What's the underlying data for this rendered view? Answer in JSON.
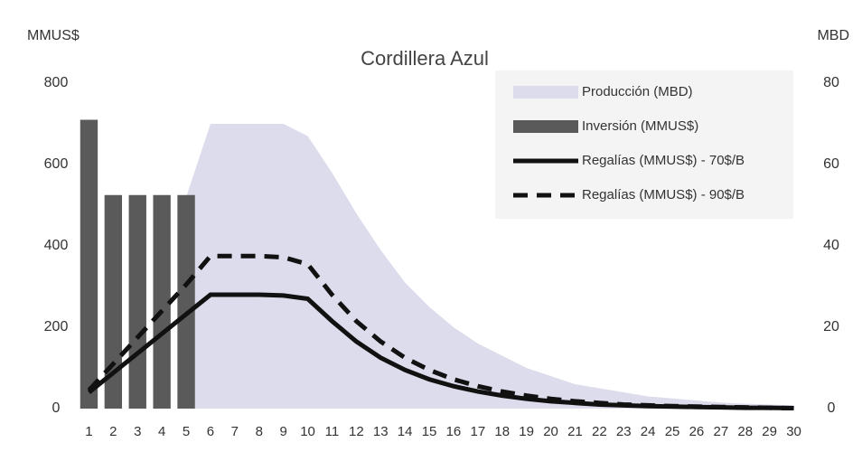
{
  "chart_data": {
    "type": "combo",
    "title": "Cordillera Azul",
    "y_label": "MMUS$",
    "y2_label": "MBD",
    "categories": [
      "1",
      "2",
      "3",
      "4",
      "5",
      "6",
      "7",
      "8",
      "9",
      "10",
      "11",
      "12",
      "13",
      "14",
      "15",
      "16",
      "17",
      "18",
      "19",
      "20",
      "21",
      "22",
      "23",
      "24",
      "25",
      "26",
      "27",
      "28",
      "29",
      "30"
    ],
    "ylim": [
      0,
      800
    ],
    "yticks": [
      0,
      200,
      400,
      600,
      800
    ],
    "y2lim": [
      0,
      80
    ],
    "y2ticks": [
      0,
      20,
      40,
      60,
      80
    ],
    "legend": "top-right",
    "series": [
      {
        "name": "Producción (MBD)",
        "kind": "area",
        "axis": "y2",
        "color": "#dcdcec",
        "values": [
          null,
          null,
          null,
          null,
          52,
          70,
          70,
          70,
          70,
          67,
          58,
          48,
          39,
          31,
          25,
          20,
          16,
          13,
          10,
          8,
          6,
          5,
          4,
          3,
          2.5,
          2,
          1.5,
          1.2,
          1,
          0.8
        ]
      },
      {
        "name": "Inversión (MMUS$)",
        "kind": "bar",
        "color": "#5a5a5a",
        "values": [
          710,
          525,
          525,
          525,
          525,
          null,
          null,
          null,
          null,
          null,
          null,
          null,
          null,
          null,
          null,
          null,
          null,
          null,
          null,
          null,
          null,
          null,
          null,
          null,
          null,
          null,
          null,
          null,
          null,
          null
        ]
      },
      {
        "name": "Regalías (MMUS$) - 70$/B",
        "kind": "line",
        "dash": false,
        "color": "#111111",
        "values": [
          40,
          88,
          136,
          184,
          232,
          280,
          280,
          280,
          278,
          270,
          215,
          165,
          125,
          95,
          72,
          55,
          42,
          32,
          24,
          18,
          14,
          10,
          8,
          6,
          5,
          4,
          3,
          2,
          2,
          1
        ]
      },
      {
        "name": "Regalías (MMUS$) - 90$/B",
        "kind": "line",
        "dash": true,
        "color": "#111111",
        "values": [
          45,
          110,
          175,
          240,
          305,
          375,
          375,
          375,
          372,
          355,
          280,
          215,
          165,
          125,
          95,
          72,
          55,
          42,
          32,
          24,
          18,
          14,
          10,
          8,
          6,
          5,
          4,
          3,
          2,
          1
        ]
      }
    ]
  }
}
